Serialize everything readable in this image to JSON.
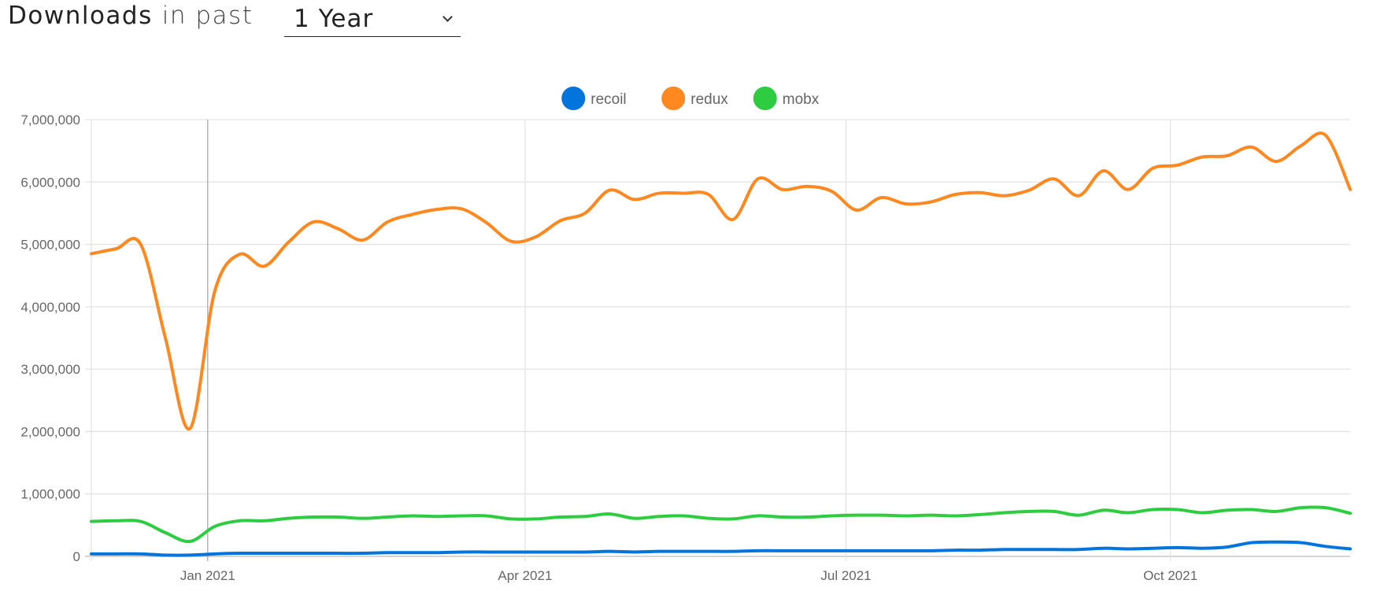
{
  "header": {
    "title_strong": "Downloads",
    "title_soft": "in past",
    "period_selected": "1 Year"
  },
  "chart_data": {
    "type": "line",
    "title": "Downloads in past 1 Year",
    "xlabel": "",
    "ylabel": "",
    "start_date": "2020-11-29",
    "interval_days": 7,
    "ylim": [
      0,
      7000000
    ],
    "yticks": [
      0,
      1000000,
      2000000,
      3000000,
      4000000,
      5000000,
      6000000,
      7000000
    ],
    "ytick_labels": [
      "0",
      "1,000,000",
      "2,000,000",
      "3,000,000",
      "4,000,000",
      "5,000,000",
      "6,000,000",
      "7,000,000"
    ],
    "xticks": [
      {
        "date": "2021-01-01",
        "label": "Jan 2021"
      },
      {
        "date": "2021-04-01",
        "label": "Apr 2021"
      },
      {
        "date": "2021-07-01",
        "label": "Jul 2021"
      },
      {
        "date": "2021-10-01",
        "label": "Oct 2021"
      }
    ],
    "grid": true,
    "legend_position": "top-center",
    "series": [
      {
        "name": "recoil",
        "color": "#0374dc",
        "values": [
          40000,
          40000,
          40000,
          20000,
          20000,
          40000,
          50000,
          50000,
          50000,
          50000,
          50000,
          50000,
          60000,
          60000,
          60000,
          70000,
          70000,
          70000,
          70000,
          70000,
          70000,
          80000,
          70000,
          80000,
          80000,
          80000,
          80000,
          90000,
          90000,
          90000,
          90000,
          90000,
          90000,
          90000,
          90000,
          100000,
          100000,
          110000,
          110000,
          110000,
          110000,
          130000,
          120000,
          130000,
          140000,
          130000,
          150000,
          220000,
          230000,
          220000,
          160000,
          120000
        ]
      },
      {
        "name": "redux",
        "color": "#ff8820",
        "values": [
          4850000,
          4930000,
          5000000,
          3500000,
          2050000,
          4250000,
          4840000,
          4650000,
          5040000,
          5360000,
          5250000,
          5070000,
          5360000,
          5480000,
          5560000,
          5570000,
          5350000,
          5050000,
          5120000,
          5380000,
          5500000,
          5870000,
          5720000,
          5820000,
          5820000,
          5800000,
          5400000,
          6050000,
          5880000,
          5930000,
          5850000,
          5550000,
          5750000,
          5650000,
          5680000,
          5800000,
          5830000,
          5780000,
          5870000,
          6050000,
          5780000,
          6180000,
          5880000,
          6220000,
          6270000,
          6400000,
          6420000,
          6560000,
          6330000,
          6580000,
          6750000,
          5880000
        ]
      },
      {
        "name": "mobx",
        "color": "#2ecc40",
        "values": [
          560000,
          570000,
          560000,
          380000,
          240000,
          480000,
          570000,
          570000,
          610000,
          630000,
          630000,
          610000,
          630000,
          650000,
          640000,
          650000,
          650000,
          600000,
          600000,
          630000,
          640000,
          680000,
          610000,
          640000,
          650000,
          610000,
          600000,
          650000,
          630000,
          630000,
          650000,
          660000,
          660000,
          650000,
          660000,
          650000,
          670000,
          700000,
          720000,
          720000,
          660000,
          740000,
          700000,
          750000,
          750000,
          700000,
          740000,
          750000,
          720000,
          780000,
          780000,
          690000
        ]
      }
    ]
  }
}
